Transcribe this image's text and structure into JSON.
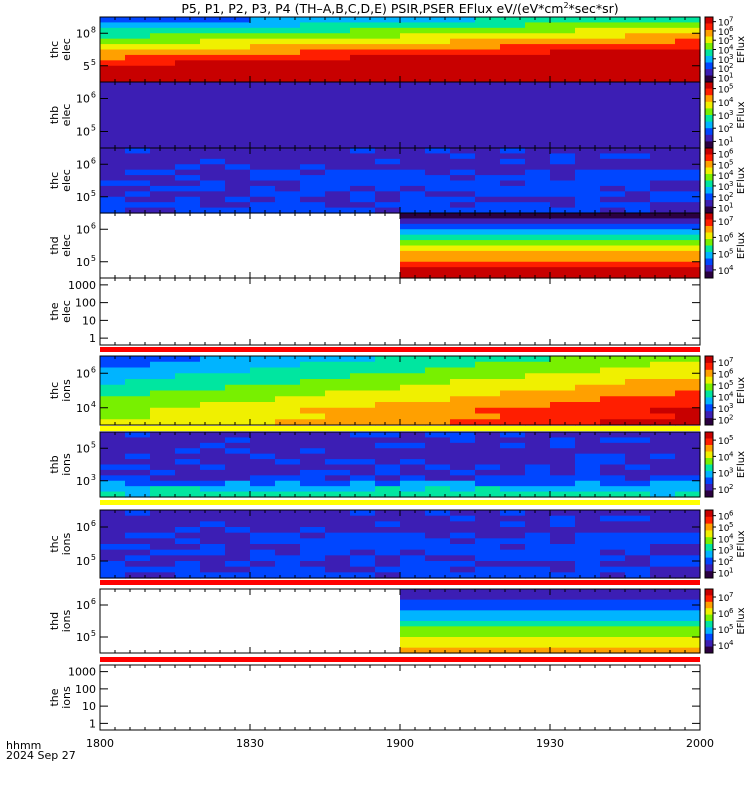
{
  "title": "P5, P1, P2, P3, P4 (TH–A,B,C,D,E) PSIR,PSER EFlux eV/(eV*cm",
  "title_sup": "2",
  "title_end": "*sec*sr)",
  "footer": {
    "time_label": "hhmm",
    "date_label": "2024 Sep 27"
  },
  "chart_data": {
    "type": "heatmap",
    "x_axis": {
      "range": [
        "1800",
        "2000"
      ],
      "ticks": [
        "1800",
        "1830",
        "1900",
        "1930",
        "2000"
      ]
    },
    "colorbar_label": "EFlux",
    "colormap": [
      "#2b0040",
      "#3c1eb4",
      "#0046ff",
      "#00b4ff",
      "#00e6a0",
      "#78f000",
      "#f0f000",
      "#ffa000",
      "#ff1e00",
      "#c80000"
    ],
    "panels": [
      {
        "label": [
          "thc",
          "elec"
        ],
        "yticks": [
          "10",
          "5"
        ],
        "yexp": [
          "8",
          "5"
        ],
        "cbar": [
          "7",
          "6",
          "5",
          "4",
          "3",
          "2",
          "1"
        ]
      },
      {
        "label": [
          "thb",
          "elec"
        ],
        "yticks": [
          "10",
          "10"
        ],
        "yexp": [
          "6",
          "5"
        ],
        "cbar": [
          "5",
          "4",
          "3",
          "2",
          "1"
        ]
      },
      {
        "label": [
          "thc",
          "elec"
        ],
        "yticks": [
          "10",
          "10"
        ],
        "yexp": [
          "6",
          "5"
        ],
        "cbar": [
          "6",
          "5",
          "4",
          "3",
          "2",
          "1"
        ]
      },
      {
        "label": [
          "thd",
          "elec"
        ],
        "yticks": [
          "10",
          "10"
        ],
        "yexp": [
          "6",
          "5"
        ],
        "cbar": [
          "7",
          "6",
          "5",
          "4"
        ]
      },
      {
        "label": [
          "the",
          "elec"
        ],
        "yticks": [
          "1000",
          "100",
          "10",
          "1"
        ],
        "yexp": [],
        "cbar": []
      },
      {
        "label": [
          "thc",
          "ions"
        ],
        "yticks": [
          "10",
          "10"
        ],
        "yexp": [
          "6",
          "4"
        ],
        "cbar": [
          "7",
          "6",
          "5",
          "4",
          "3",
          "2"
        ]
      },
      {
        "label": [
          "thb",
          "ions"
        ],
        "yticks": [
          "10",
          "10"
        ],
        "yexp": [
          "5",
          "3"
        ],
        "cbar": [
          "5",
          "4",
          "3",
          "2"
        ]
      },
      {
        "label": [
          "thc",
          "ions"
        ],
        "yticks": [
          "10",
          "10"
        ],
        "yexp": [
          "6",
          "5"
        ],
        "cbar": [
          "6",
          "5",
          "4",
          "3",
          "2",
          "1"
        ]
      },
      {
        "label": [
          "thd",
          "ions"
        ],
        "yticks": [
          "10",
          "10"
        ],
        "yexp": [
          "6",
          "5"
        ],
        "cbar": [
          "7",
          "6",
          "5",
          "4"
        ]
      },
      {
        "label": [
          "the",
          "ions"
        ],
        "yticks": [
          "1000",
          "100",
          "10",
          "1"
        ],
        "yexp": [],
        "cbar": []
      }
    ],
    "x_lim": [
      "1800",
      "2000"
    ],
    "grid": false,
    "legend": "colorbar-right"
  }
}
